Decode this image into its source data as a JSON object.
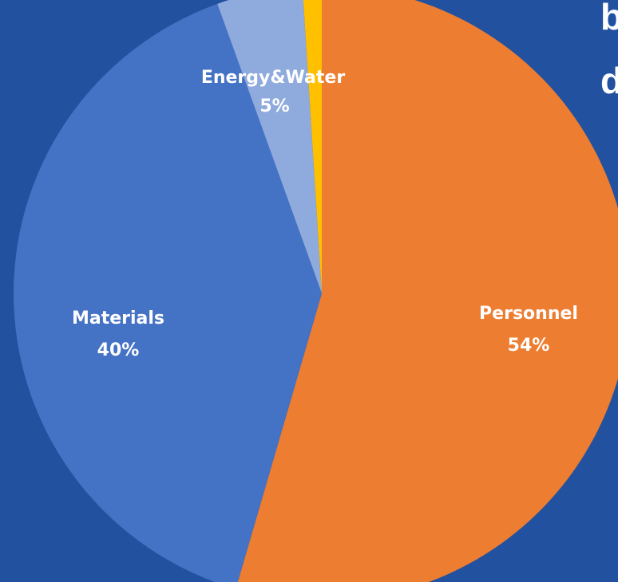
{
  "chart_data": {
    "type": "pie",
    "title": "",
    "start": "12 o'clock",
    "direction": "clockwise",
    "slices": [
      {
        "label": "Personnel",
        "display": "54%",
        "value": 54.5,
        "color": "#ed7d31"
      },
      {
        "label": "Materials",
        "display": "40%",
        "value": 40.0,
        "color": "#4472c4"
      },
      {
        "label": "Energy&Water",
        "display": "5%",
        "value": 4.5,
        "color": "#8faadc"
      },
      {
        "label": "",
        "display": "",
        "value": 1.0,
        "color": "#ffc000"
      }
    ]
  },
  "background_color": "#2251a0",
  "side_text": {
    "line1": "b",
    "line2": "d"
  }
}
